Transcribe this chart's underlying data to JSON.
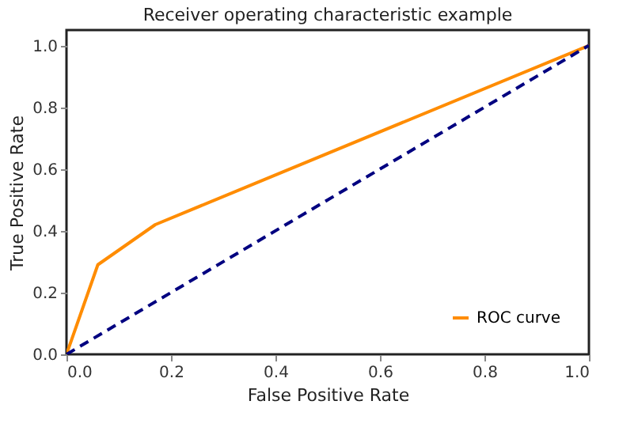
{
  "chart_data": {
    "type": "line",
    "title": "Receiver operating characteristic example",
    "xlabel": "False Positive Rate",
    "ylabel": "True Positive Rate",
    "series": [
      {
        "name": "ROC curve",
        "color": "#ff8c00",
        "x": [
          0,
          0.06,
          0.17,
          1
        ],
        "values": [
          0,
          0.29,
          0.42,
          1
        ],
        "line_style": "solid"
      },
      {
        "color": "#000080",
        "x": [
          0,
          1
        ],
        "values": [
          0,
          1
        ],
        "line_style": "dashed"
      }
    ],
    "xlim": [
      0,
      1
    ],
    "ylim": [
      0,
      1.05
    ],
    "xticks": [
      {
        "value": 0,
        "label": "0.0"
      },
      0.2,
      0.4,
      0.6,
      0.8,
      {
        "value": 1,
        "label": "1.0"
      }
    ],
    "yticks": [
      {
        "value": 0,
        "label": "0.0"
      },
      0.2,
      0.4,
      0.6,
      0.8,
      {
        "value": 1,
        "label": "1.0"
      }
    ],
    "grid": false,
    "legend": "bottom right",
    "marker": "none"
  }
}
